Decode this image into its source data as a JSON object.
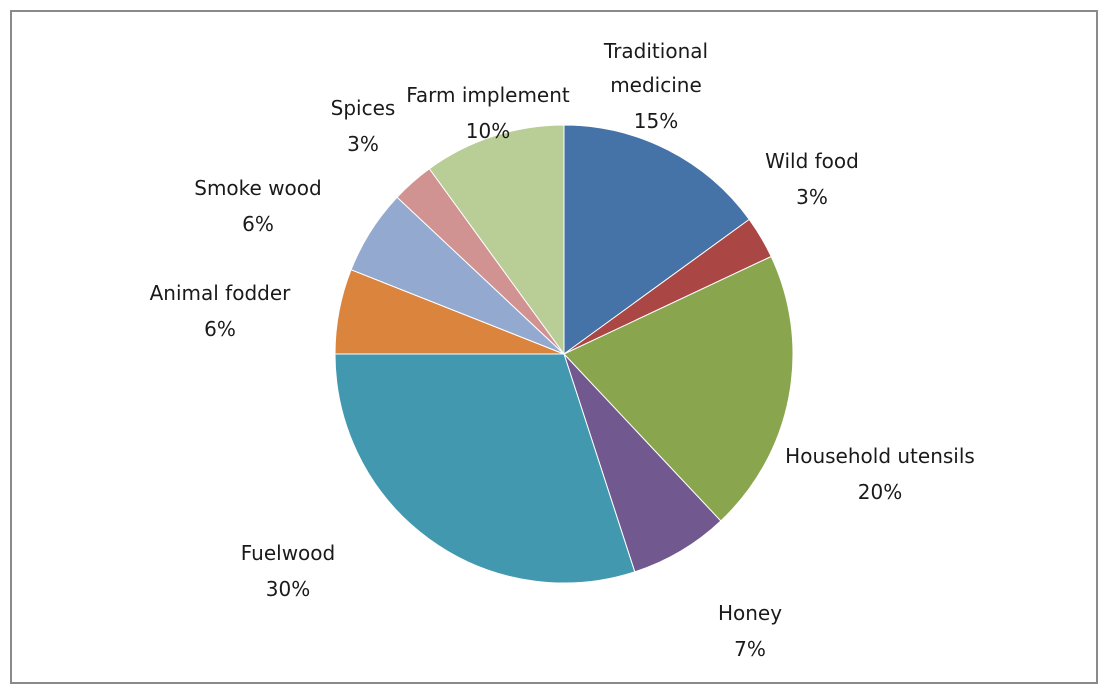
{
  "chart_data": {
    "type": "pie",
    "title": "",
    "series": [
      {
        "categories": [
          "Traditional medicine",
          "Wild food",
          "Household utensils",
          "Honey",
          "Fuelwood",
          "Animal fodder",
          "Smoke wood",
          "Spices",
          "Farm implement"
        ],
        "values": [
          15,
          3,
          20,
          7,
          30,
          6,
          6,
          3,
          10
        ],
        "value_labels": [
          "15%",
          "3%",
          "20%",
          "7%",
          "30%",
          "6%",
          "6%",
          "3%",
          "10%"
        ],
        "colors": [
          "#4572a7",
          "#aa4643",
          "#89a54e",
          "#71588f",
          "#4198af",
          "#db843d",
          "#93a9cf",
          "#d19392",
          "#b9cd96"
        ]
      }
    ],
    "start_angle": "12 o'clock",
    "direction": "clockwise",
    "legend": "none",
    "data_labels": "category name and percent outside slices"
  }
}
